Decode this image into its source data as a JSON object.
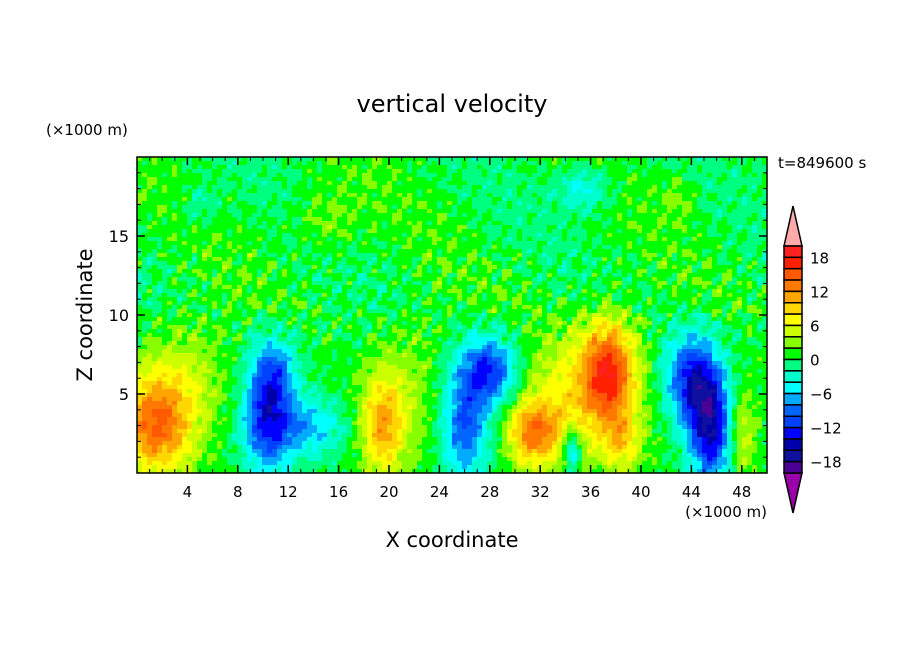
{
  "chart_data": {
    "type": "heatmap",
    "title": "vertical velocity",
    "xlabel": "X coordinate",
    "ylabel": "Z coordinate",
    "x_unit_label": "(×1000 m)",
    "y_unit_label": "(×1000 m)",
    "time_label": "t=849600 s",
    "xlim": [
      0,
      50
    ],
    "ylim": [
      0,
      20
    ],
    "xticks": [
      4,
      8,
      12,
      16,
      20,
      24,
      28,
      32,
      36,
      40,
      44,
      48
    ],
    "yticks": [
      5,
      10,
      15
    ],
    "colorbar": {
      "levels_min": -20,
      "levels_max": 20,
      "step": 2,
      "tick_labels": [
        "18",
        "12",
        "6",
        "0",
        "−6",
        "−12",
        "−18"
      ],
      "tick_values": [
        18,
        12,
        6,
        0,
        -6,
        -12,
        -18
      ],
      "colors_high_to_low": [
        "#ff2020",
        "#ff2000",
        "#ff5a00",
        "#ff7800",
        "#ffa500",
        "#ffd700",
        "#ffff00",
        "#ccff00",
        "#88ff00",
        "#00ff00",
        "#00ff80",
        "#00ffcc",
        "#00ffff",
        "#00aaff",
        "#0066ff",
        "#0040ff",
        "#0000ff",
        "#0000aa",
        "#1010a0",
        "#4b0096"
      ],
      "over_color": "#ffaaaa",
      "under_color": "#9900aa"
    },
    "features": [
      {
        "x": 1.5,
        "z": 3,
        "w": 13,
        "sx": 2,
        "sz": 2.2
      },
      {
        "x": 4,
        "z": 6,
        "w": 4,
        "sx": 2.5,
        "sz": 2.5
      },
      {
        "x": 10.3,
        "z": 3.5,
        "w": -12,
        "sx": 1.3,
        "sz": 2.5
      },
      {
        "x": 11,
        "z": 6.5,
        "w": -7,
        "sx": 1.2,
        "sz": 1.5
      },
      {
        "x": 13.5,
        "z": 3,
        "w": -7,
        "sx": 2,
        "sz": 1.3
      },
      {
        "x": 19.5,
        "z": 3,
        "w": 10,
        "sx": 1.2,
        "sz": 2.4
      },
      {
        "x": 22,
        "z": 5.5,
        "w": 3,
        "sx": 1.8,
        "sz": 3
      },
      {
        "x": 26,
        "z": 3,
        "w": -10,
        "sx": 1.3,
        "sz": 2.5
      },
      {
        "x": 28,
        "z": 6.5,
        "w": -12,
        "sx": 1.5,
        "sz": 1.5
      },
      {
        "x": 31.5,
        "z": 2.5,
        "w": 12,
        "sx": 1.5,
        "sz": 1.5
      },
      {
        "x": 37.5,
        "z": 6.5,
        "w": 13,
        "sx": 1.4,
        "sz": 2.2
      },
      {
        "x": 35.5,
        "z": 5,
        "w": 7,
        "sx": 3,
        "sz": 3
      },
      {
        "x": 34.5,
        "z": 1.5,
        "w": -9,
        "sx": 0.5,
        "sz": 1
      },
      {
        "x": 38.5,
        "z": 2,
        "w": 6,
        "sx": 1,
        "sz": 1.2
      },
      {
        "x": 44,
        "z": 6,
        "w": -12,
        "sx": 1.4,
        "sz": 2
      },
      {
        "x": 45.5,
        "z": 3,
        "w": -15,
        "sx": 1.2,
        "sz": 2.5
      },
      {
        "x": 48,
        "z": 2.5,
        "w": 6,
        "sx": 0.8,
        "sz": 2
      },
      {
        "x": 5,
        "z": 17,
        "w": -3,
        "sx": 1,
        "sz": 1
      },
      {
        "x": 35.5,
        "z": 18,
        "w": -5,
        "sx": 1.5,
        "sz": 1
      },
      {
        "x": 15,
        "z": 16,
        "w": 3,
        "sx": 2,
        "sz": 1.5
      },
      {
        "x": 43,
        "z": 17.5,
        "w": 2.5,
        "sx": 1,
        "sz": 1
      }
    ]
  }
}
